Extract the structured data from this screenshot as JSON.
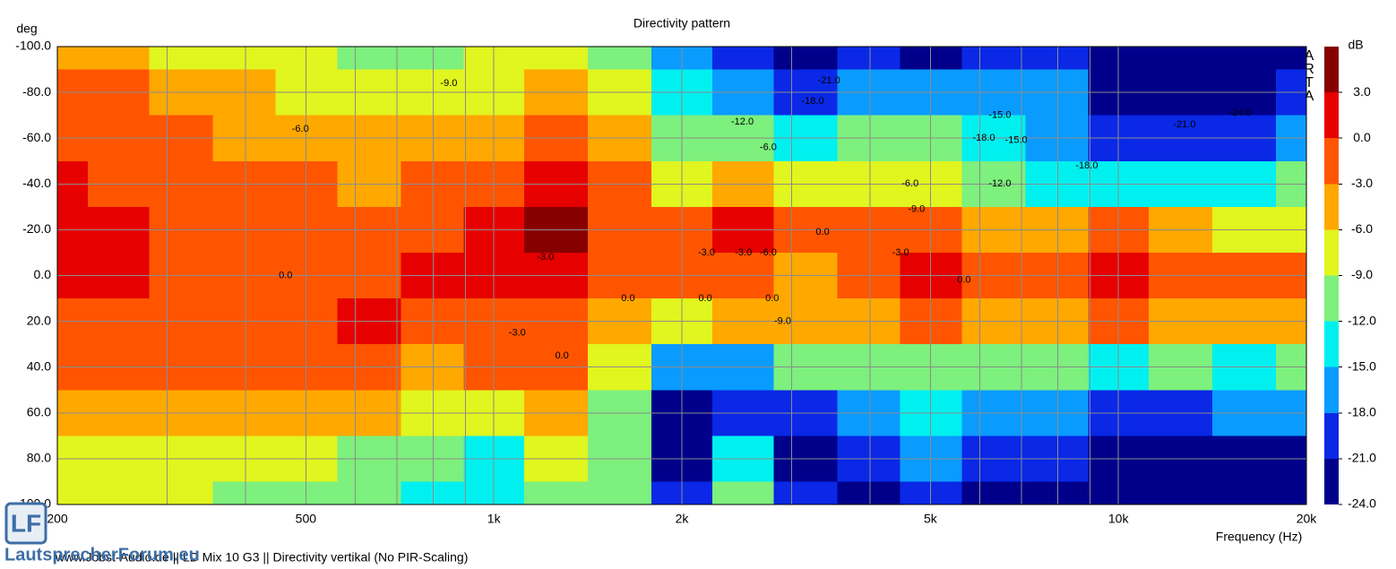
{
  "chart_data": {
    "type": "contour",
    "title": "Directivity pattern",
    "ylabel": "deg",
    "xlabel": "Frequency (Hz)",
    "xscale": "log",
    "xlim": [
      200,
      20000
    ],
    "ylim": [
      -100,
      100
    ],
    "xticks": [
      200,
      500,
      {
        "value": 1000,
        "label": "1k"
      },
      {
        "value": 2000,
        "label": "2k"
      },
      {
        "value": 5000,
        "label": "5k"
      },
      {
        "value": 10000,
        "label": "10k"
      },
      {
        "value": 20000,
        "label": "20k"
      }
    ],
    "xminor": [
      300,
      400,
      600,
      700,
      800,
      900,
      3000,
      4000,
      6000,
      7000,
      8000,
      9000
    ],
    "yticks": [
      {
        "value": -100,
        "label": "-100.0"
      },
      {
        "value": -80,
        "label": "-80.0"
      },
      {
        "value": -60,
        "label": "-60.0"
      },
      {
        "value": -40,
        "label": "-40.0"
      },
      {
        "value": -20,
        "label": "-20.0"
      },
      {
        "value": 0,
        "label": "0.0"
      },
      {
        "value": 20,
        "label": "20.0"
      },
      {
        "value": 40,
        "label": "40.0"
      },
      {
        "value": 60,
        "label": "60.0"
      },
      {
        "value": 80,
        "label": "80.0"
      },
      {
        "value": 100,
        "label": "100.0"
      }
    ],
    "grid": true,
    "x": [
      200,
      250,
      315,
      400,
      500,
      630,
      800,
      1000,
      1250,
      1600,
      2000,
      2500,
      3150,
      4000,
      5000,
      6300,
      8000,
      10000,
      12500,
      16000,
      20000
    ],
    "y": [
      -100,
      -80,
      -60,
      -40,
      -20,
      0,
      20,
      40,
      60,
      80,
      100
    ],
    "z": [
      [
        -4.5,
        -1.5,
        -1.5,
        1,
        1.5,
        0.5,
        -1.5,
        -2,
        -4.5,
        -7,
        -8
      ],
      [
        -5,
        -1.5,
        -1.5,
        -1,
        1,
        0.5,
        -1.5,
        -2,
        -4.5,
        -7.5,
        -8
      ],
      [
        -7,
        -4,
        -2,
        -1.5,
        -1,
        -0.5,
        -1.5,
        -2.5,
        -5,
        -7,
        -8
      ],
      [
        -7.5,
        -4.5,
        -4,
        -2,
        -1,
        -0.5,
        -1.5,
        -2.5,
        -5,
        -7.5,
        -10
      ],
      [
        -9,
        -7,
        -5,
        -2.5,
        -1.5,
        -0.5,
        -1.5,
        -2.5,
        -5,
        -8,
        -10.5
      ],
      [
        -10.5,
        -7.5,
        -5,
        -4,
        -1.5,
        -0.5,
        1,
        -2.5,
        -5.5,
        -10,
        -11
      ],
      [
        -10,
        -9,
        -5,
        -2.5,
        -1.5,
        0.5,
        -1,
        -4,
        -8,
        -11,
        -13
      ],
      [
        -8,
        -7,
        -4.5,
        -1,
        1,
        1,
        -1.5,
        -3,
        -7.5,
        -13,
        -14
      ],
      [
        -7,
        -6,
        -2,
        1.5,
        4,
        1,
        -1.5,
        -2,
        -4.5,
        -7.5,
        -10
      ],
      [
        -9.5,
        -9,
        -4.5,
        -2,
        -1.5,
        -1,
        -4.5,
        -8,
        -10,
        -11,
        -10
      ],
      [
        -17,
        -13,
        -10,
        -7,
        -2,
        -1,
        -7,
        -18,
        -22,
        -23,
        -20
      ],
      [
        -21,
        -17,
        -11,
        -5,
        1,
        -1,
        -5,
        -16,
        -19,
        -14,
        -12
      ],
      [
        -22,
        -20,
        -14,
        -8,
        -1.5,
        -4,
        -5,
        -10,
        -19,
        -22,
        -20
      ],
      [
        -20,
        -17,
        -12,
        -7,
        -2,
        -1,
        -4,
        -11,
        -17,
        -20,
        -22
      ],
      [
        -22,
        -18,
        -12,
        -6.5,
        -2,
        1,
        -2,
        -10,
        -15,
        -18,
        -21
      ],
      [
        -20,
        -17,
        -15,
        -11,
        -4.5,
        -1,
        -4,
        -12,
        -16,
        -19,
        -22
      ],
      [
        -21,
        -18,
        -16,
        -13,
        -4.5,
        -1,
        -4.5,
        -12,
        -16,
        -19,
        -22
      ],
      [
        -25,
        -22,
        -19,
        -14,
        -2,
        1,
        -2,
        -13,
        -19,
        -25,
        -25
      ],
      [
        -25,
        -23,
        -20,
        -13,
        -5,
        -1.5,
        -3.5,
        -12,
        -19,
        -25,
        -25
      ],
      [
        -25,
        -22,
        -19,
        -14,
        -7,
        -1.5,
        -4.5,
        -13,
        -17,
        -25,
        -25
      ],
      [
        -22,
        -19,
        -16,
        -11,
        -7,
        -1.5,
        -5,
        -11,
        -17,
        -25,
        -25
      ]
    ],
    "contour_labels": [
      {
        "x": 847,
        "y": -84,
        "value": -9,
        "label": "-9.0"
      },
      {
        "x": 490,
        "y": -64,
        "value": -6,
        "label": "-6.0"
      },
      {
        "x": 3440,
        "y": -85,
        "value": -21,
        "label": "-21.0"
      },
      {
        "x": 3240,
        "y": -76,
        "value": -18,
        "label": "-18.0"
      },
      {
        "x": 2500,
        "y": -67,
        "value": -12,
        "label": "-12.0"
      },
      {
        "x": 2750,
        "y": -56,
        "value": -6,
        "label": "-6.0"
      },
      {
        "x": 6460,
        "y": -70,
        "value": -15,
        "label": "-15.0"
      },
      {
        "x": 6090,
        "y": -60,
        "value": -18,
        "label": "-18.0"
      },
      {
        "x": 6860,
        "y": -59,
        "value": -15,
        "label": "-15.0"
      },
      {
        "x": 12760,
        "y": -66,
        "value": -21,
        "label": "-21.0"
      },
      {
        "x": 15660,
        "y": -71,
        "value": -24,
        "label": "-24.0"
      },
      {
        "x": 8900,
        "y": -48,
        "value": -18,
        "label": "-18.0"
      },
      {
        "x": 6460,
        "y": -40,
        "value": -12,
        "label": "-12.0"
      },
      {
        "x": 4640,
        "y": -40,
        "value": -6,
        "label": "-6.0"
      },
      {
        "x": 4750,
        "y": -29,
        "value": -9,
        "label": "-9.0"
      },
      {
        "x": 3360,
        "y": -19,
        "value": 0,
        "label": "0.0"
      },
      {
        "x": 2190,
        "y": -10,
        "value": -3,
        "label": "-3.0"
      },
      {
        "x": 2510,
        "y": -10,
        "value": -3,
        "label": "-3.0"
      },
      {
        "x": 2750,
        "y": -10,
        "value": -6,
        "label": "-6.0"
      },
      {
        "x": 4480,
        "y": -10,
        "value": -3,
        "label": "-3.0"
      },
      {
        "x": 1210,
        "y": -8,
        "value": -3,
        "label": "-3.0"
      },
      {
        "x": 464,
        "y": 0,
        "value": 0,
        "label": "0.0"
      },
      {
        "x": 5660,
        "y": 2,
        "value": 0,
        "label": "0.0"
      },
      {
        "x": 1640,
        "y": 10,
        "value": 0,
        "label": "0.0"
      },
      {
        "x": 2180,
        "y": 10,
        "value": 0,
        "label": "0.0"
      },
      {
        "x": 2790,
        "y": 10,
        "value": 0,
        "label": "0.0"
      },
      {
        "x": 2900,
        "y": 20,
        "value": -9,
        "label": "-9.0"
      },
      {
        "x": 1090,
        "y": 25,
        "value": -3,
        "label": "-3.0"
      },
      {
        "x": 1285,
        "y": 35,
        "value": 0,
        "label": "0.0"
      }
    ],
    "colorbar": {
      "label": "dB",
      "lim": [
        -24,
        6
      ],
      "colors": [
        "#00008b",
        "#0a28e6",
        "#0a9bff",
        "#00f0f0",
        "#7df07d",
        "#e1f51e",
        "#ffa800",
        "#ff5500",
        "#e60000",
        "#870000"
      ],
      "ticks": [
        {
          "value": 3,
          "label": "3.0"
        },
        {
          "value": 0,
          "label": "0.0"
        },
        {
          "value": -3,
          "label": "-3.0"
        },
        {
          "value": -6,
          "label": "-6.0"
        },
        {
          "value": -9,
          "label": "-9.0"
        },
        {
          "value": -12,
          "label": "-12.0"
        },
        {
          "value": -15,
          "label": "-15.0"
        },
        {
          "value": -18,
          "label": "-18.0"
        },
        {
          "value": -21,
          "label": "-21.0"
        },
        {
          "value": -24,
          "label": "-24.0"
        }
      ]
    },
    "brand": "ARTA",
    "footer": "www.Jobst-Audio.de  ||  LD Mix 10 G3  ||  Directivity vertikal (No PIR-Scaling)",
    "logo": {
      "mark": "LF",
      "text": "LautsprecherForum.eu"
    }
  }
}
